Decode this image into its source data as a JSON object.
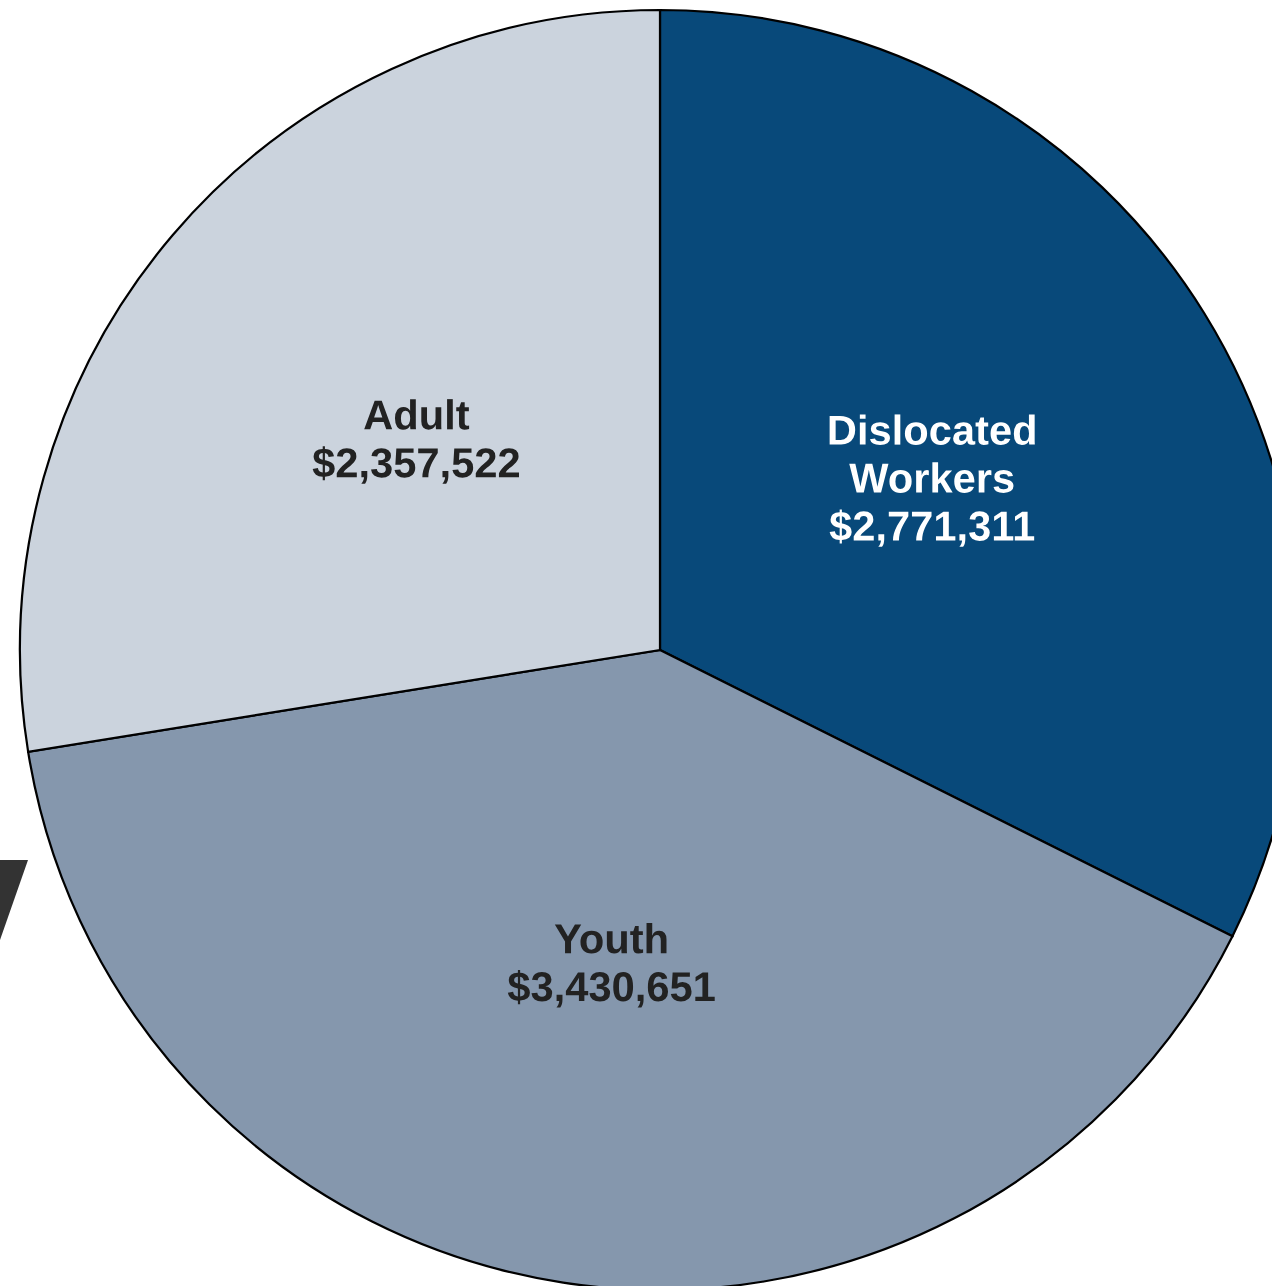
{
  "chart_data": {
    "type": "pie",
    "categories": [
      "Dislocated\nWorkers",
      "Youth",
      "Adult"
    ],
    "values": [
      2771311,
      3430651,
      2357522
    ],
    "value_labels": [
      "$2,771,311",
      "$3,430,651",
      "$2,357,522"
    ],
    "colors": [
      "#08497a",
      "#8597ad",
      "#cbd3dd"
    ]
  }
}
